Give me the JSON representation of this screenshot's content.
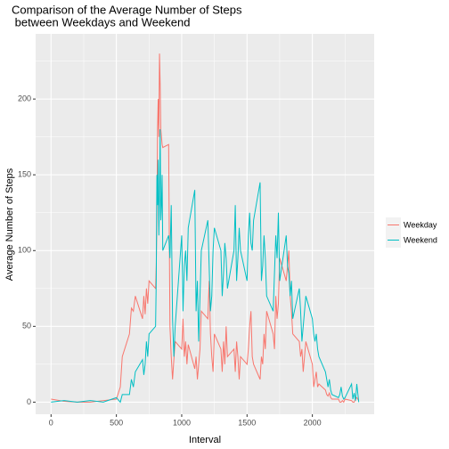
{
  "chart_data": {
    "type": "line",
    "title": [
      "Comparison of the Average Number of Steps",
      " between Weekdays and Weekend"
    ],
    "xlabel": "Interval",
    "ylabel": "Average Number of Steps",
    "x": [
      0,
      100,
      200,
      300,
      400,
      500,
      530,
      545,
      600,
      615,
      630,
      645,
      700,
      710,
      720,
      730,
      740,
      750,
      800,
      805,
      810,
      815,
      820,
      825,
      830,
      835,
      840,
      845,
      850,
      855,
      900,
      910,
      920,
      930,
      940,
      950,
      1000,
      1010,
      1020,
      1030,
      1040,
      1050,
      1100,
      1110,
      1120,
      1130,
      1140,
      1150,
      1200,
      1210,
      1220,
      1230,
      1240,
      1250,
      1300,
      1310,
      1320,
      1330,
      1340,
      1350,
      1400,
      1410,
      1420,
      1430,
      1440,
      1450,
      1500,
      1510,
      1520,
      1530,
      1540,
      1550,
      1600,
      1610,
      1620,
      1630,
      1640,
      1650,
      1700,
      1710,
      1720,
      1730,
      1740,
      1750,
      1800,
      1810,
      1820,
      1830,
      1840,
      1850,
      1900,
      1910,
      1920,
      1930,
      1940,
      1950,
      2000,
      2010,
      2020,
      2030,
      2040,
      2050,
      2100,
      2110,
      2120,
      2130,
      2140,
      2150,
      2200,
      2210,
      2220,
      2230,
      2240,
      2250,
      2300,
      2310,
      2320,
      2330,
      2340,
      2355
    ],
    "series": [
      {
        "name": "Weekday",
        "color": "#F8766D",
        "values": [
          2,
          0.5,
          0,
          0,
          1,
          2,
          10,
          30,
          45,
          62,
          60,
          70,
          55,
          70,
          58,
          75,
          65,
          80,
          75,
          90,
          120,
          180,
          200,
          175,
          230,
          210,
          180,
          175,
          170,
          168,
          170,
          50,
          30,
          15,
          28,
          40,
          35,
          55,
          30,
          40,
          25,
          38,
          22,
          30,
          15,
          25,
          35,
          60,
          55,
          80,
          45,
          30,
          20,
          45,
          35,
          20,
          40,
          25,
          50,
          30,
          35,
          20,
          40,
          30,
          15,
          30,
          25,
          35,
          50,
          60,
          30,
          25,
          15,
          30,
          25,
          45,
          35,
          60,
          45,
          35,
          70,
          55,
          65,
          95,
          80,
          90,
          100,
          70,
          60,
          45,
          40,
          30,
          35,
          20,
          30,
          40,
          25,
          10,
          15,
          20,
          10,
          12,
          8,
          5,
          4,
          6,
          3,
          2,
          2,
          0,
          0,
          1,
          0,
          2,
          1,
          0,
          0,
          2,
          3,
          1
        ]
      },
      {
        "name": "Weekend",
        "color": "#00BFC4",
        "values": [
          0,
          1,
          0,
          1,
          0,
          3,
          0,
          5,
          5,
          15,
          10,
          20,
          28,
          18,
          25,
          40,
          30,
          45,
          50,
          80,
          150,
          130,
          160,
          110,
          135,
          180,
          120,
          130,
          150,
          100,
          110,
          95,
          130,
          55,
          30,
          50,
          110,
          60,
          90,
          100,
          80,
          115,
          140,
          60,
          80,
          40,
          70,
          100,
          120,
          90,
          60,
          70,
          100,
          115,
          100,
          70,
          85,
          105,
          95,
          75,
          100,
          130,
          80,
          95,
          115,
          100,
          80,
          110,
          125,
          105,
          100,
          120,
          145,
          80,
          90,
          110,
          95,
          70,
          60,
          85,
          110,
          95,
          125,
          80,
          110,
          90,
          85,
          70,
          80,
          55,
          75,
          60,
          40,
          50,
          60,
          70,
          55,
          45,
          40,
          45,
          35,
          30,
          20,
          15,
          10,
          15,
          8,
          5,
          3,
          5,
          10,
          4,
          2,
          3,
          12,
          2,
          6,
          1,
          12,
          0
        ]
      }
    ],
    "xlim": [
      -118,
      2473
    ],
    "xticks": [
      0,
      500,
      1000,
      1500,
      2000
    ],
    "ylim": [
      -8,
      243
    ],
    "yticks": [
      0,
      50,
      100,
      150,
      200
    ],
    "grid": true,
    "legend": "right"
  }
}
